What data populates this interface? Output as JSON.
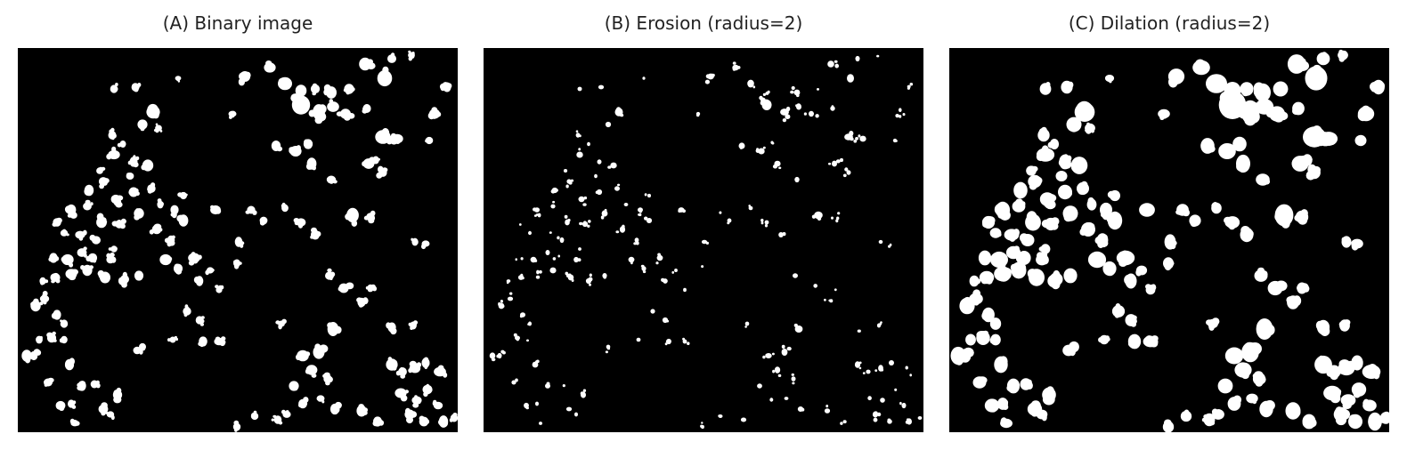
{
  "panels": [
    {
      "title": "(A) Binary image"
    },
    {
      "title": "(B) Erosion (radius=2)"
    },
    {
      "title": "(C) Dilation (radius=2)"
    }
  ],
  "colors": {
    "background": "#000000",
    "foreground": "#ffffff",
    "page": "#ffffff"
  }
}
